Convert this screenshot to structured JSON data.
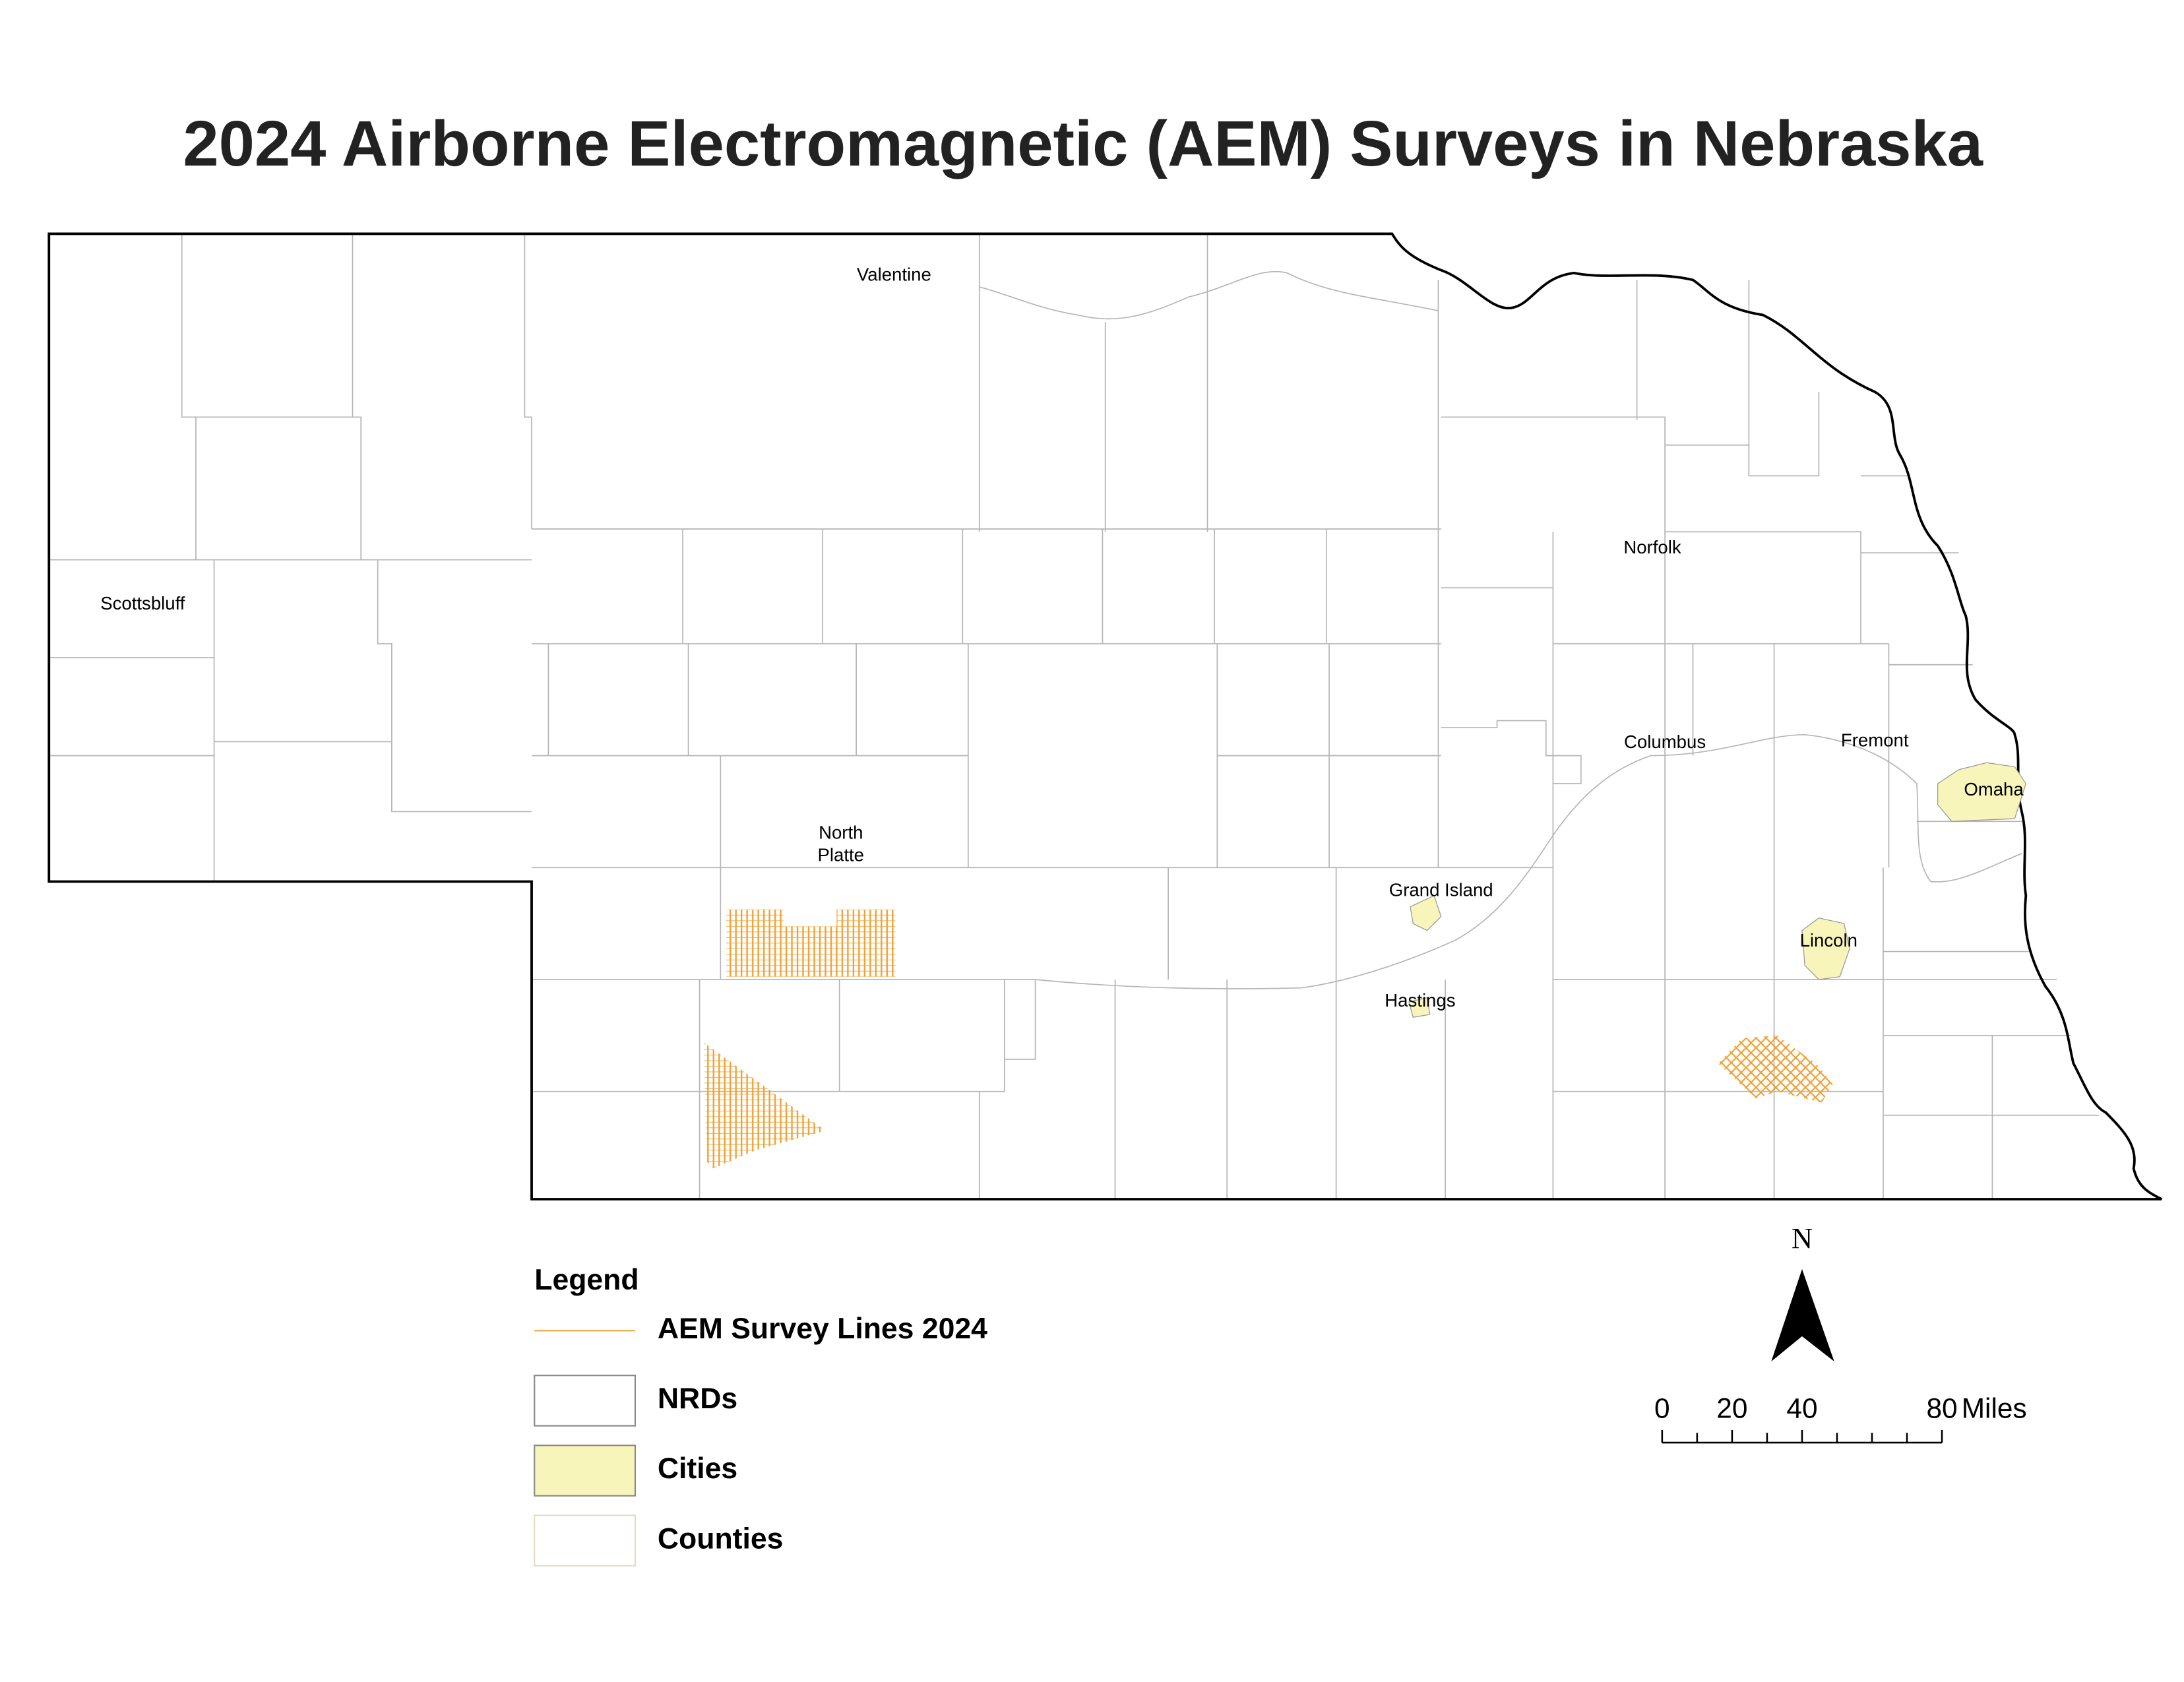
{
  "header": {
    "title": "2024 Airborne Electromagnetic (AEM) Surveys in Nebraska"
  },
  "map": {
    "cities": [
      {
        "label": [
          "Valentine"
        ]
      },
      {
        "label": [
          "Scottsbluff"
        ]
      },
      {
        "label": [
          "Norfolk"
        ]
      },
      {
        "label": [
          "North",
          "Platte"
        ]
      },
      {
        "label": [
          "Columbus"
        ]
      },
      {
        "label": [
          "Fremont"
        ]
      },
      {
        "label": [
          "Omaha"
        ]
      },
      {
        "label": [
          "Grand Island"
        ]
      },
      {
        "label": [
          "Lincoln"
        ]
      },
      {
        "label": [
          "Hastings"
        ]
      }
    ]
  },
  "legend": {
    "title": "Legend",
    "items": [
      "AEM Survey Lines 2024",
      "NRDs",
      "Cities",
      "Counties"
    ]
  },
  "north_arrow": {
    "label": "N"
  },
  "scale_bar": {
    "labels": [
      "0",
      "20",
      "40",
      "80"
    ],
    "unit": "Miles"
  }
}
